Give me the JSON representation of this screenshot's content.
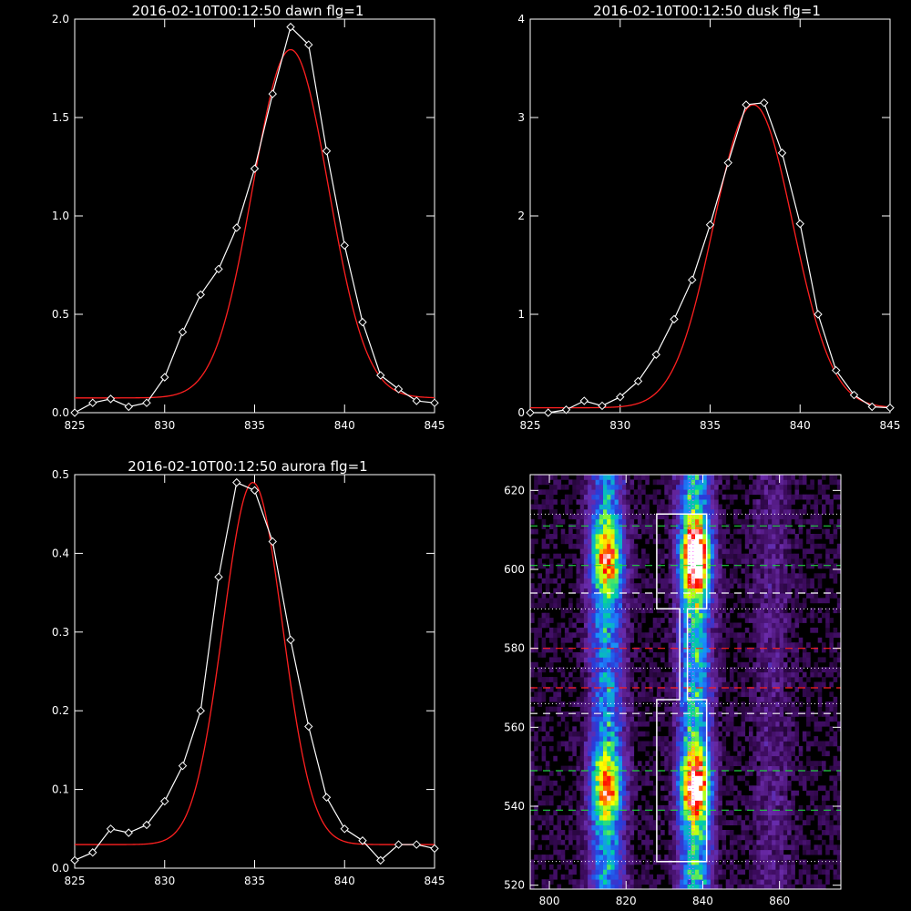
{
  "chart_data": [
    {
      "type": "line",
      "title": "2016-02-10T00:12:50 dawn flg=1",
      "xlim": [
        825,
        845
      ],
      "ylim": [
        0,
        2.0
      ],
      "xticks": [
        825,
        830,
        835,
        840,
        845
      ],
      "yticks": [
        0.0,
        0.5,
        1.0,
        1.5,
        2.0
      ],
      "ytick_labels": [
        "0.0",
        "0.5",
        "1.0",
        "1.5",
        "2.0"
      ],
      "colors": {
        "data": "#ffffff",
        "fit": "#ff2020"
      },
      "series": [
        {
          "marker": "diamond",
          "x": [
            825,
            826,
            827,
            828,
            829,
            830,
            831,
            832,
            833,
            834,
            835,
            836,
            837,
            838,
            839,
            840,
            841,
            842,
            843,
            844,
            845
          ],
          "y": [
            0.0,
            0.05,
            0.07,
            0.03,
            0.05,
            0.18,
            0.41,
            0.6,
            0.73,
            0.94,
            1.24,
            1.62,
            1.96,
            1.87,
            1.33,
            0.85,
            0.46,
            0.19,
            0.12,
            0.06,
            0.05
          ]
        },
        {
          "marker": "none",
          "gaussian": {
            "amplitude": 1.77,
            "center": 837.0,
            "sigma": 2.1,
            "offset": 0.075
          }
        }
      ]
    },
    {
      "type": "line",
      "title": "2016-02-10T00:12:50 dusk flg=1",
      "xlim": [
        825,
        845
      ],
      "ylim": [
        0,
        4
      ],
      "xticks": [
        825,
        830,
        835,
        840,
        845
      ],
      "yticks": [
        0,
        1,
        2,
        3,
        4
      ],
      "ytick_labels": [
        "0",
        "1",
        "2",
        "3",
        "4"
      ],
      "colors": {
        "data": "#ffffff",
        "fit": "#ff2020"
      },
      "series": [
        {
          "marker": "diamond",
          "x": [
            825,
            826,
            827,
            828,
            829,
            830,
            831,
            832,
            833,
            834,
            835,
            836,
            837,
            838,
            839,
            840,
            841,
            842,
            843,
            844,
            845
          ],
          "y": [
            0.0,
            0.0,
            0.03,
            0.12,
            0.07,
            0.16,
            0.32,
            0.59,
            0.95,
            1.35,
            1.91,
            2.54,
            3.13,
            3.15,
            2.64,
            1.92,
            1.0,
            0.43,
            0.18,
            0.06,
            0.05
          ]
        },
        {
          "marker": "none",
          "gaussian": {
            "amplitude": 3.08,
            "center": 837.4,
            "sigma": 2.2,
            "offset": 0.05
          }
        }
      ]
    },
    {
      "type": "line",
      "title": "2016-02-10T00:12:50 aurora flg=1",
      "xlim": [
        825,
        845
      ],
      "ylim": [
        0,
        0.5
      ],
      "xticks": [
        825,
        830,
        835,
        840,
        845
      ],
      "yticks": [
        0.0,
        0.1,
        0.2,
        0.3,
        0.4,
        0.5
      ],
      "ytick_labels": [
        "0.0",
        "0.1",
        "0.2",
        "0.3",
        "0.4",
        "0.5"
      ],
      "colors": {
        "data": "#ffffff",
        "fit": "#ff2020"
      },
      "series": [
        {
          "marker": "diamond",
          "x": [
            825,
            826,
            827,
            828,
            829,
            830,
            831,
            832,
            833,
            834,
            835,
            836,
            837,
            838,
            839,
            840,
            841,
            842,
            843,
            844,
            845
          ],
          "y": [
            0.01,
            0.02,
            0.05,
            0.045,
            0.055,
            0.085,
            0.13,
            0.2,
            0.37,
            0.49,
            0.48,
            0.415,
            0.29,
            0.18,
            0.09,
            0.05,
            0.035,
            0.01,
            0.03,
            0.03,
            0.025
          ]
        },
        {
          "marker": "none",
          "gaussian": {
            "amplitude": 0.46,
            "center": 834.9,
            "sigma": 1.65,
            "offset": 0.03
          }
        }
      ]
    },
    {
      "type": "heatmap",
      "xlim": [
        795,
        876
      ],
      "ylim": [
        519,
        624
      ],
      "xticks": [
        800,
        820,
        840,
        860
      ],
      "yticks": [
        520,
        540,
        560,
        580,
        600,
        620
      ],
      "colorscale": [
        "#000000",
        "#3a0a5a",
        "#6a2aa8",
        "#2a3ad8",
        "#1a8aff",
        "#00d0a0",
        "#a0ff20",
        "#ffff00",
        "#ff8000",
        "#ff0000",
        "#ffffff"
      ],
      "intensity_columns": [
        {
          "center": 815,
          "width": 3.2,
          "level": 0.45
        },
        {
          "center": 838,
          "width": 3.0,
          "level": 0.55
        },
        {
          "center": 858,
          "width": 3.5,
          "level": 0.12
        }
      ],
      "intensity_blobs": [
        {
          "x": 815,
          "y": 603,
          "sx": 2.5,
          "sy": 6,
          "amp": 0.55
        },
        {
          "x": 815,
          "y": 545,
          "sx": 2.5,
          "sy": 6,
          "amp": 0.55
        },
        {
          "x": 838,
          "y": 603,
          "sx": 2.5,
          "sy": 6,
          "amp": 0.9
        },
        {
          "x": 838,
          "y": 545,
          "sx": 2.5,
          "sy": 6,
          "amp": 0.7
        },
        {
          "x": 838,
          "y": 605,
          "sx": 0.8,
          "sy": 1.2,
          "amp": 0.5
        }
      ],
      "regions": [
        {
          "name": "upper box",
          "x": [
            828,
            841
          ],
          "y": [
            590,
            614
          ]
        },
        {
          "name": "middle slit",
          "x": [
            834,
            836
          ],
          "y": [
            567,
            590
          ]
        },
        {
          "name": "lower box",
          "x": [
            828,
            841
          ],
          "y": [
            526,
            567
          ]
        }
      ],
      "lines": {
        "green_dashed_y": [
          611,
          601,
          549,
          539
        ],
        "white_dashed_y": [
          594,
          563.5
        ],
        "red_dashed_y": [
          580,
          570
        ],
        "white_dotted_y": [
          614,
          590,
          575,
          566,
          526
        ],
        "magenta_dotted_x": [
          837
        ]
      },
      "line_colors": {
        "green": "#20d040",
        "white": "#ffffff",
        "red": "#ff2020",
        "magenta": "#ff60ff"
      }
    }
  ]
}
